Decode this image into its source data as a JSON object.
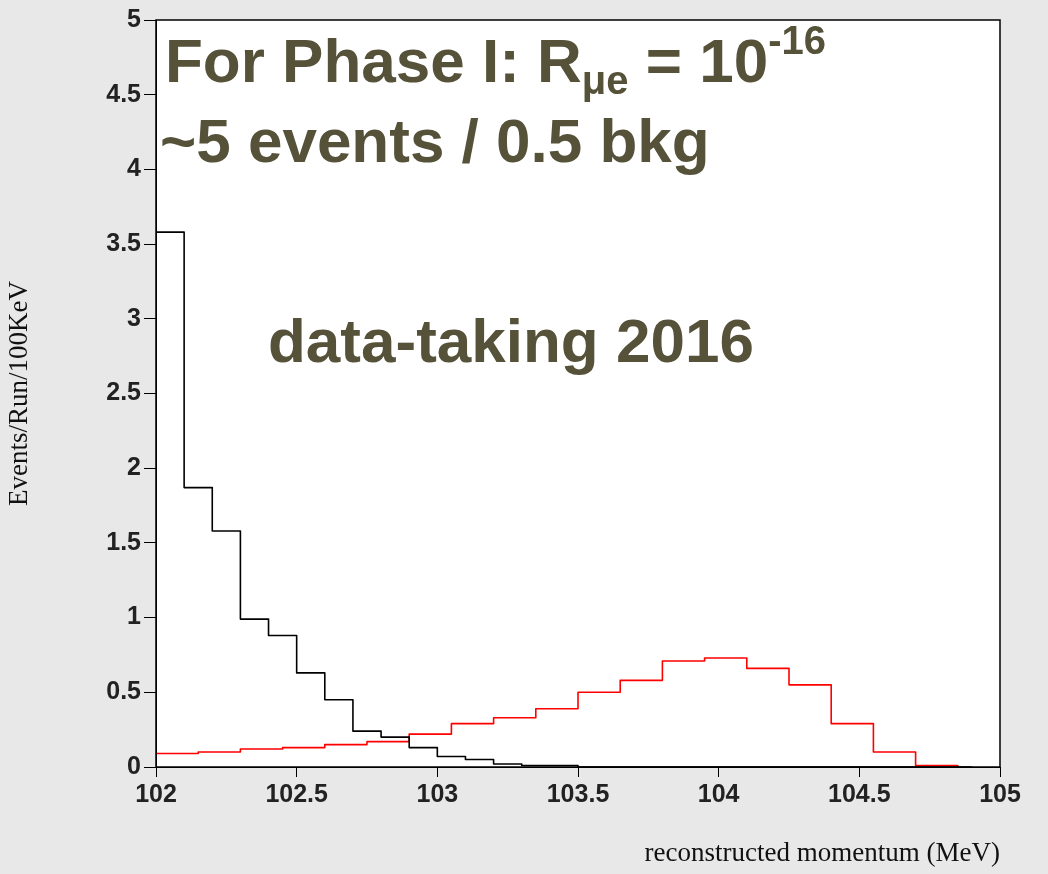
{
  "chart_data": {
    "type": "step",
    "xlabel": "reconstructed momentum (MeV)",
    "ylabel": "Events/Run/100KeV",
    "xlim": [
      102,
      105
    ],
    "xticks": [
      102,
      102.5,
      103,
      103.5,
      104,
      104.5,
      105
    ],
    "ylim": [
      0,
      5
    ],
    "yticks": [
      0,
      0.5,
      1,
      1.5,
      2,
      2.5,
      3,
      3.5,
      4,
      4.5,
      5
    ],
    "grid": false,
    "legend": false,
    "marker": "none",
    "annotations": [
      "For Phase I: R$_{μe}$ = 10$^{-16}$",
      "~5 events / 0.5 bkg",
      "data-taking 2016"
    ],
    "series": [
      {
        "color": "#000000",
        "x": [
          102,
          102.1,
          102.2,
          102.3,
          102.4,
          102.5,
          102.6,
          102.7,
          102.8,
          102.9,
          103,
          103.1,
          103.2,
          103.3,
          103.4,
          103.5,
          103.6,
          103.7,
          103.8,
          103.9,
          104,
          104.1,
          104.2,
          104.3,
          104.4,
          104.5,
          104.6,
          104.7,
          104.8,
          104.9
        ],
        "values": [
          3.58,
          1.87,
          1.58,
          0.99,
          0.88,
          0.63,
          0.45,
          0.24,
          0.2,
          0.13,
          0.07,
          0.05,
          0.02,
          0.01,
          0.01,
          0,
          0,
          0,
          0,
          0,
          0,
          0,
          0,
          0,
          0,
          0,
          0,
          0,
          0,
          0
        ]
      },
      {
        "color": "#ff0000",
        "x": [
          102,
          102.15,
          102.3,
          102.45,
          102.6,
          102.75,
          102.9,
          103.05,
          103.2,
          103.35,
          103.5,
          103.65,
          103.8,
          103.95,
          104.1,
          104.25,
          104.4,
          104.55,
          104.7,
          104.85
        ],
        "values": [
          0.09,
          0.1,
          0.12,
          0.13,
          0.15,
          0.17,
          0.22,
          0.29,
          0.33,
          0.39,
          0.5,
          0.58,
          0.71,
          0.73,
          0.66,
          0.55,
          0.29,
          0.1,
          0.01,
          0
        ]
      }
    ]
  }
}
